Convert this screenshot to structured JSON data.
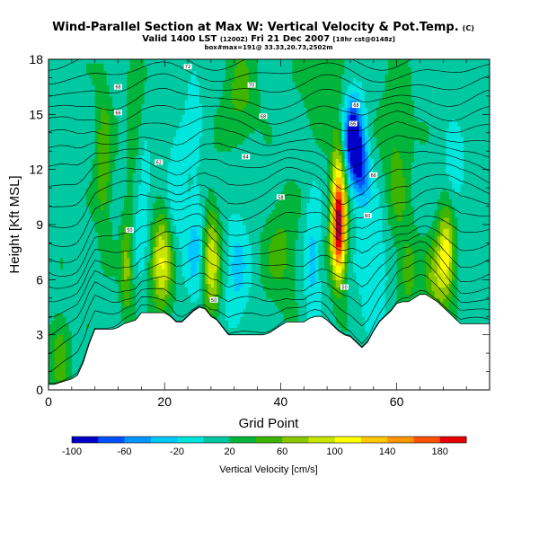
{
  "title": {
    "line1": "Wind-Parallel Section at Max W: Vertical Velocity & Pot.Temp.",
    "line1_mark": "(C)",
    "line2_a": "Valid 1400 LST",
    "line2_b": "(1200Z)",
    "line2_c": "Fri 21 Dec 2007",
    "line2_d": "[18hr cst@0148z]",
    "line3": "box#max=191@ 33.33,20.73,2502m"
  },
  "colors": {
    "terrain": "#ffffff",
    "contour": "#000000"
  },
  "chart_data": {
    "type": "heatmap",
    "title": "Wind-Parallel Section at Max W: Vertical Velocity & Pot.Temp.",
    "xlabel": "Grid Point",
    "ylabel": "Height [Kft MSL]",
    "xlim": [
      0,
      76
    ],
    "ylim": [
      0,
      18
    ],
    "xticks": [
      0,
      20,
      40,
      60
    ],
    "yticks": [
      0,
      3,
      6,
      9,
      12,
      15,
      18
    ],
    "xtick_labels": [
      "0",
      "20",
      "40",
      "60"
    ],
    "ytick_labels": [
      "0",
      "3",
      "6",
      "9",
      "12",
      "15",
      "18"
    ],
    "colorbar": {
      "label": "Vertical Velocity [cm/s]",
      "ticks": [
        "-100",
        "-60",
        "-20",
        "20",
        "60",
        "100",
        "140",
        "180"
      ],
      "tick_values": [
        -100,
        -60,
        -20,
        20,
        60,
        100,
        140,
        180
      ],
      "range": [
        -100,
        200
      ],
      "levels": [
        -100,
        -80,
        -60,
        -40,
        -20,
        0,
        20,
        40,
        60,
        80,
        100,
        120,
        140,
        160,
        180,
        200
      ],
      "colors": [
        "#0000c8",
        "#0050ff",
        "#0096ff",
        "#00c8ff",
        "#00e6dc",
        "#00c8a0",
        "#00b43c",
        "#3cb400",
        "#8cc800",
        "#c8e600",
        "#ffff00",
        "#ffc800",
        "#ff9600",
        "#ff5000",
        "#e60000",
        "#a0002a"
      ]
    },
    "terrain": {
      "x": [
        0,
        1,
        2,
        3,
        4,
        5,
        6,
        7,
        8,
        9,
        10,
        11,
        12,
        13,
        14,
        15,
        16,
        17,
        18,
        19,
        20,
        21,
        22,
        23,
        24,
        25,
        26,
        27,
        28,
        29,
        30,
        31,
        32,
        33,
        34,
        35,
        36,
        37,
        38,
        39,
        40,
        41,
        42,
        43,
        44,
        45,
        46,
        47,
        48,
        49,
        50,
        51,
        52,
        53,
        54,
        55,
        56,
        57,
        58,
        59,
        60,
        61,
        62,
        63,
        64,
        65,
        66,
        67,
        68,
        69,
        70,
        71,
        72,
        73,
        74,
        75,
        76
      ],
      "height": [
        0.3,
        0.3,
        0.4,
        0.5,
        0.6,
        0.8,
        1.5,
        2.5,
        3.3,
        3.3,
        3.3,
        3.3,
        3.4,
        3.6,
        3.7,
        3.8,
        4.2,
        4.2,
        4.2,
        4.2,
        4.2,
        4.0,
        3.7,
        3.7,
        4.0,
        4.3,
        4.5,
        4.4,
        4.0,
        3.8,
        3.4,
        3.0,
        3.0,
        3.0,
        3.0,
        3.0,
        3.0,
        3.0,
        3.1,
        3.3,
        3.5,
        3.7,
        3.7,
        3.7,
        3.7,
        3.9,
        4.0,
        4.0,
        3.8,
        3.5,
        3.2,
        3.0,
        2.9,
        2.6,
        2.3,
        2.6,
        3.2,
        3.7,
        4.0,
        4.3,
        4.7,
        4.8,
        4.8,
        5.0,
        5.2,
        5.2,
        5.0,
        4.8,
        4.5,
        4.2,
        3.9,
        3.6,
        3.6,
        3.6,
        3.6,
        3.6,
        3.6
      ]
    },
    "features": [
      {
        "x": 50,
        "z": 8.6,
        "sx": 0.9,
        "sz": 1.9,
        "amp": 175
      },
      {
        "x": 50,
        "z": 11.5,
        "sx": 0.9,
        "sz": 2.2,
        "amp": 70
      },
      {
        "x": 52.5,
        "z": 13.6,
        "sx": 1.2,
        "sz": 1.7,
        "amp": -120
      },
      {
        "x": 54,
        "z": 12.0,
        "sx": 1.0,
        "sz": 1.3,
        "amp": -60
      },
      {
        "x": 19.5,
        "z": 7.0,
        "sx": 1.3,
        "sz": 2.0,
        "amp": 85
      },
      {
        "x": 28,
        "z": 7.0,
        "sx": 1.1,
        "sz": 2.2,
        "amp": 85
      },
      {
        "x": 68.5,
        "z": 7.4,
        "sx": 1.0,
        "sz": 1.7,
        "amp": 100
      },
      {
        "x": 66.5,
        "z": 6.0,
        "sx": 1.2,
        "sz": 1.5,
        "amp": 50
      },
      {
        "x": 13.5,
        "z": 6.8,
        "sx": 0.8,
        "sz": 2.0,
        "amp": 55
      },
      {
        "x": 9.5,
        "z": 12.5,
        "sx": 1.0,
        "sz": 3.0,
        "amp": 45
      },
      {
        "x": 15,
        "z": 14.0,
        "sx": 1.0,
        "sz": 2.5,
        "amp": 35
      },
      {
        "x": 16,
        "z": 10.5,
        "sx": 1.2,
        "sz": 2.5,
        "amp": -35
      },
      {
        "x": 22,
        "z": 11.0,
        "sx": 1.2,
        "sz": 2.5,
        "amp": -30
      },
      {
        "x": 25.5,
        "z": 8.0,
        "sx": 1.3,
        "sz": 2.5,
        "amp": -40
      },
      {
        "x": 32.5,
        "z": 6.5,
        "sx": 1.5,
        "sz": 2.5,
        "amp": -35
      },
      {
        "x": 40,
        "z": 7.5,
        "sx": 2.0,
        "sz": 2.0,
        "amp": 35
      },
      {
        "x": 45.5,
        "z": 7.0,
        "sx": 1.0,
        "sz": 2.5,
        "amp": -40
      },
      {
        "x": 56,
        "z": 7.0,
        "sx": 2.0,
        "sz": 2.5,
        "amp": -30
      },
      {
        "x": 62,
        "z": 6.5,
        "sx": 1.2,
        "sz": 1.5,
        "amp": 40
      },
      {
        "x": 70,
        "z": 12.0,
        "sx": 1.2,
        "sz": 1.5,
        "amp": -30
      },
      {
        "x": 33,
        "z": 16.0,
        "sx": 2.0,
        "sz": 2.0,
        "amp": 35
      },
      {
        "x": 47,
        "z": 16.5,
        "sx": 2.0,
        "sz": 1.5,
        "amp": 30
      },
      {
        "x": 25,
        "z": 16.0,
        "sx": 1.0,
        "sz": 2.0,
        "amp": -25
      },
      {
        "x": 60,
        "z": 11.0,
        "sx": 1.5,
        "sz": 2.5,
        "amp": 30
      },
      {
        "x": 2,
        "z": 2.0,
        "sx": 1.2,
        "sz": 1.5,
        "amp": 45
      },
      {
        "x": 60,
        "z": 15.0,
        "sx": 2.0,
        "sz": 2.0,
        "amp": 20
      }
    ],
    "theta_contours": {
      "levels": [
        38,
        40,
        42,
        44,
        46,
        48,
        50,
        52,
        54,
        56,
        58,
        60,
        62,
        64,
        66,
        68,
        70,
        72,
        74,
        76,
        78,
        80
      ],
      "labels": [
        {
          "text": "50",
          "x": 14,
          "z": 8.7
        },
        {
          "text": "50",
          "x": 28.5,
          "z": 4.9
        },
        {
          "text": "50",
          "x": 51,
          "z": 5.6
        },
        {
          "text": "58",
          "x": 40,
          "z": 10.5
        },
        {
          "text": "60",
          "x": 55,
          "z": 9.5
        },
        {
          "text": "62",
          "x": 19,
          "z": 12.4
        },
        {
          "text": "64",
          "x": 34,
          "z": 12.7
        },
        {
          "text": "66",
          "x": 56,
          "z": 11.7
        },
        {
          "text": "66",
          "x": 12,
          "z": 15.1
        },
        {
          "text": "66",
          "x": 52.5,
          "z": 14.5
        },
        {
          "text": "68",
          "x": 37,
          "z": 14.9
        },
        {
          "text": "68",
          "x": 53,
          "z": 15.5
        },
        {
          "text": "68",
          "x": 12,
          "z": 16.5
        },
        {
          "text": "70",
          "x": 35,
          "z": 16.6
        },
        {
          "text": "72",
          "x": 24,
          "z": 17.6
        }
      ]
    }
  }
}
